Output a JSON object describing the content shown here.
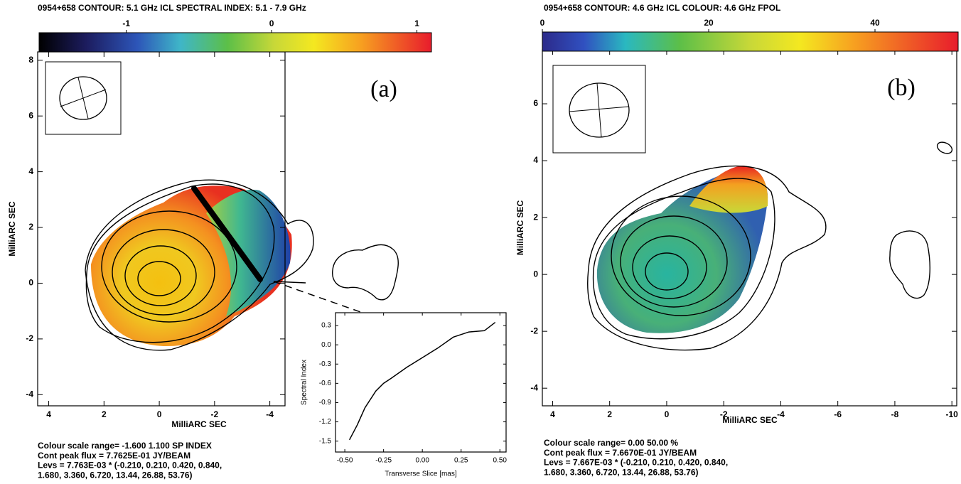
{
  "chart_data": [
    {
      "type": "contour",
      "title": "0954+658  CONTOUR: 5.1 GHz ICL   SPECTRAL INDEX: 5.1 - 7.9 GHz",
      "clim": [
        -1.6,
        1.1
      ],
      "cticks": [
        -1,
        0,
        1
      ],
      "annotation": "(a)",
      "xlabel": "MilliARC SEC",
      "ylabel": "MilliARC SEC",
      "xlim": [
        4.4,
        -4.55
      ],
      "ylim": [
        -4.4,
        8.3
      ],
      "xticks": [
        4,
        2,
        0,
        -2,
        -4
      ],
      "yticks": [
        -4,
        -2,
        0,
        2,
        4,
        6,
        8
      ],
      "notes": [
        "Colour scale range= -1.600 1.100 SP INDEX",
        "Cont peak flux =  7.7625E-01 JY/BEAM",
        "Levs = 7.763E-03 * (-0.210, 0.210, 0.420, 0.840,",
        "1.680, 3.360, 6.720, 13.44, 26.88, 53.76)"
      ]
    },
    {
      "type": "line",
      "xlabel": "Transverse Slice [mas]",
      "ylabel": "Spectral Index",
      "x": [
        -0.47,
        -0.42,
        -0.37,
        -0.3,
        -0.25,
        -0.2,
        -0.1,
        0,
        0.1,
        0.2,
        0.3,
        0.4,
        0.47
      ],
      "values": [
        -1.48,
        -1.25,
        -0.98,
        -0.72,
        -0.6,
        -0.52,
        -0.35,
        -0.2,
        -0.05,
        0.12,
        0.2,
        0.22,
        0.35
      ],
      "xlim": [
        -0.56,
        0.54
      ],
      "ylim": [
        -1.67,
        0.5
      ],
      "xticks": [
        {
          "value": -0.5,
          "label": "-0.50"
        },
        {
          "value": -0.25,
          "label": "-0.25"
        },
        {
          "value": 0,
          "label": "0.00"
        },
        {
          "value": 0.25,
          "label": "0.25"
        },
        {
          "value": 0.5,
          "label": "0.50"
        }
      ],
      "yticks": [
        0.3,
        {
          "value": 0,
          "label": "0.0"
        },
        -0.3,
        -0.6,
        -0.9,
        -1.2,
        -1.5
      ]
    },
    {
      "type": "contour",
      "title": "0954+658  CONTOUR: 4.6 GHz ICL   COLOUR: 4.6 GHz FPOL",
      "clim": [
        0,
        50
      ],
      "cticks": [
        0,
        20,
        40
      ],
      "annotation": "(b)",
      "xlabel": "MilliARC SEC",
      "ylabel": "MilliARC SEC",
      "xlim": [
        4.36,
        -10.17
      ],
      "ylim": [
        -4.62,
        7.9
      ],
      "xticks": [
        4,
        2,
        0,
        -2,
        -4,
        -6,
        -8,
        -10
      ],
      "yticks": [
        -4,
        -2,
        0,
        2,
        4,
        6
      ],
      "notes": [
        "Colour scale range= 0.00 50.00 %",
        "Cont peak flux =  7.6670E-01 JY/BEAM",
        "Levs = 7.667E-03 * (-0.210, 0.210, 0.420, 0.840,",
        "1.680, 3.360, 6.720, 13.44, 26.88, 53.76)"
      ]
    }
  ]
}
